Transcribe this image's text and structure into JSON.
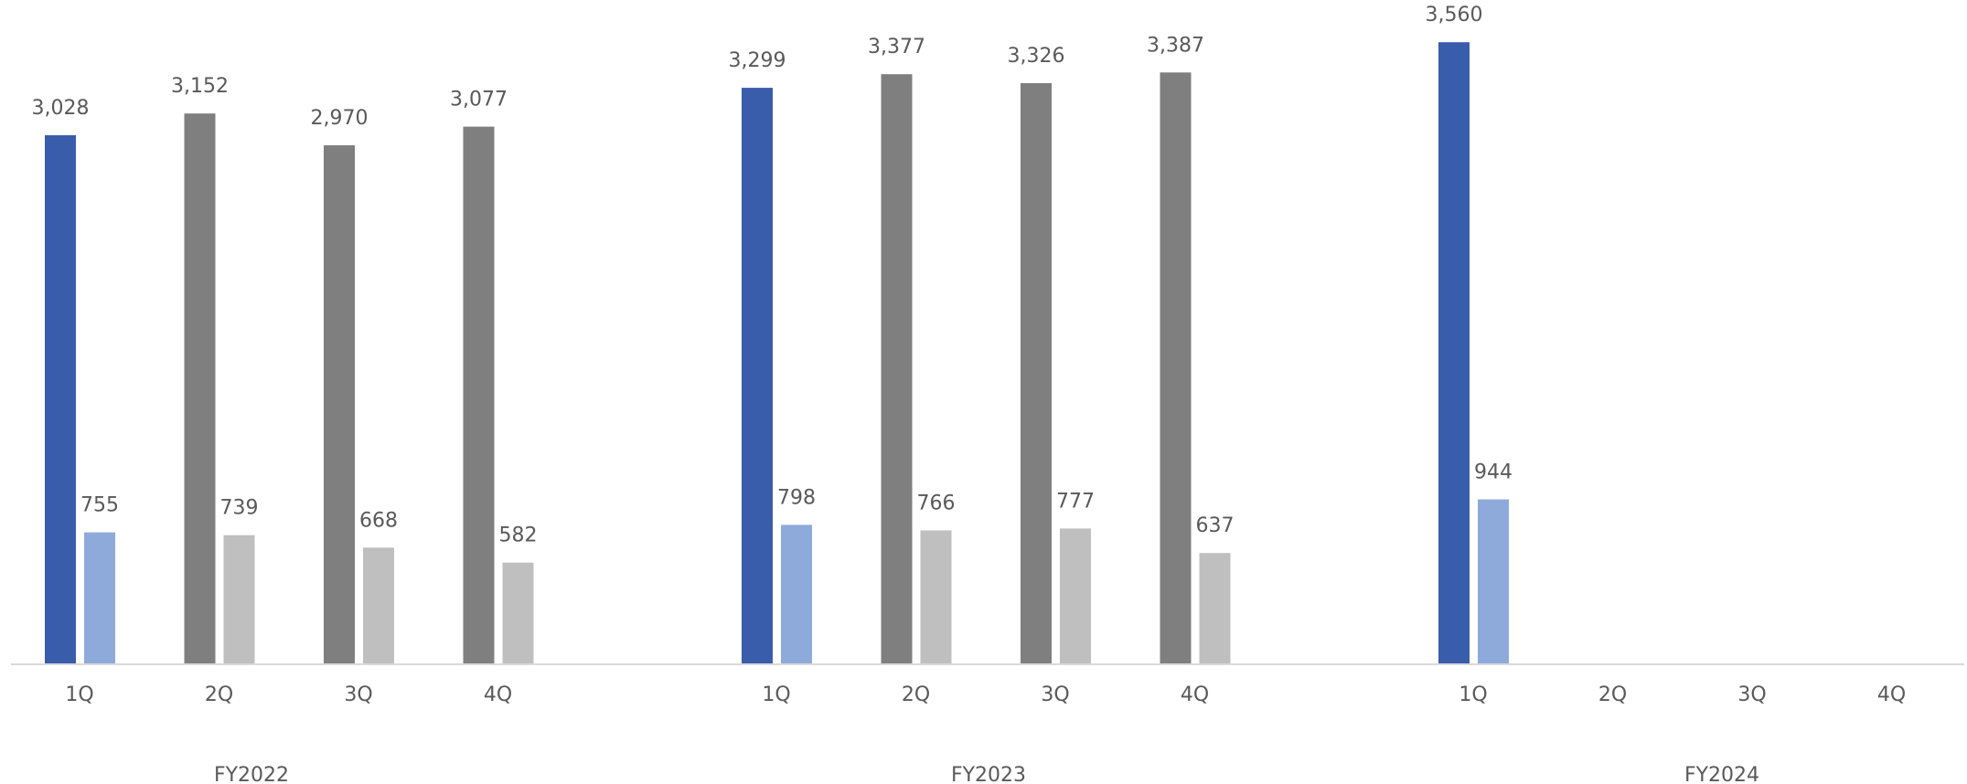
{
  "chart_data": {
    "type": "bar",
    "title": "",
    "xlabel": "",
    "ylabel": "",
    "ylim": [
      0,
      3600
    ],
    "grid": false,
    "legend": "none",
    "groups": [
      {
        "label": "FY2022",
        "quarters": [
          {
            "label": "1Q",
            "primary": 3028,
            "secondary": 755
          },
          {
            "label": "2Q",
            "primary": 3152,
            "secondary": 739
          },
          {
            "label": "3Q",
            "primary": 2970,
            "secondary": 668
          },
          {
            "label": "4Q",
            "primary": 3077,
            "secondary": 582
          }
        ]
      },
      {
        "label": "FY2023",
        "quarters": [
          {
            "label": "1Q",
            "primary": 3299,
            "secondary": 798
          },
          {
            "label": "2Q",
            "primary": 3377,
            "secondary": 766
          },
          {
            "label": "3Q",
            "primary": 3326,
            "secondary": 777
          },
          {
            "label": "4Q",
            "primary": 3387,
            "secondary": 637
          }
        ]
      },
      {
        "label": "FY2024",
        "quarters": [
          {
            "label": "1Q",
            "primary": 3560,
            "secondary": 944
          },
          {
            "label": "2Q",
            "primary": null,
            "secondary": null
          },
          {
            "label": "3Q",
            "primary": null,
            "secondary": null
          },
          {
            "label": "4Q",
            "primary": null,
            "secondary": null
          }
        ]
      }
    ],
    "colors": {
      "highlight_primary": "#3A5DAB",
      "highlight_secondary": "#8EAADB",
      "other_primary": "#7F7F7F",
      "other_secondary": "#BFBFBF",
      "axis": "#D9D9D9",
      "text": "#595959"
    }
  }
}
